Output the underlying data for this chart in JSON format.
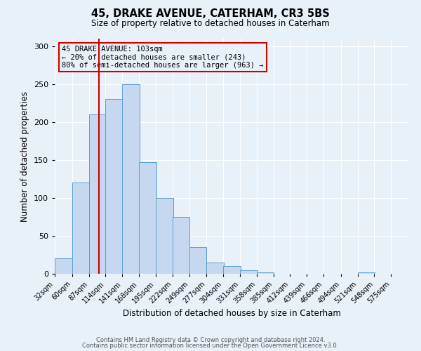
{
  "title": "45, DRAKE AVENUE, CATERHAM, CR3 5BS",
  "subtitle": "Size of property relative to detached houses in Caterham",
  "xlabel": "Distribution of detached houses by size in Caterham",
  "ylabel": "Number of detached properties",
  "bin_labels": [
    "32sqm",
    "60sqm",
    "87sqm",
    "114sqm",
    "141sqm",
    "168sqm",
    "195sqm",
    "222sqm",
    "249sqm",
    "277sqm",
    "304sqm",
    "331sqm",
    "358sqm",
    "385sqm",
    "412sqm",
    "439sqm",
    "466sqm",
    "494sqm",
    "521sqm",
    "548sqm",
    "575sqm"
  ],
  "bin_edges": [
    32,
    60,
    87,
    114,
    141,
    168,
    195,
    222,
    249,
    277,
    304,
    331,
    358,
    385,
    412,
    439,
    466,
    494,
    521,
    548,
    575
  ],
  "bar_heights": [
    20,
    120,
    210,
    230,
    250,
    147,
    100,
    75,
    35,
    15,
    10,
    5,
    2,
    0,
    0,
    0,
    0,
    0,
    2,
    0,
    0
  ],
  "bar_color": "#c5d8f0",
  "bar_edge_color": "#5a9fd4",
  "ylim": [
    0,
    310
  ],
  "yticks": [
    0,
    50,
    100,
    150,
    200,
    250,
    300
  ],
  "vline_x": 103,
  "vline_color": "#cc0000",
  "annotation_title": "45 DRAKE AVENUE: 103sqm",
  "annotation_line1": "← 20% of detached houses are smaller (243)",
  "annotation_line2": "80% of semi-detached houses are larger (963) →",
  "annotation_box_color": "#cc0000",
  "bg_color": "#e8f0f8",
  "footer1": "Contains HM Land Registry data © Crown copyright and database right 2024.",
  "footer2": "Contains public sector information licensed under the Open Government Licence v3.0."
}
